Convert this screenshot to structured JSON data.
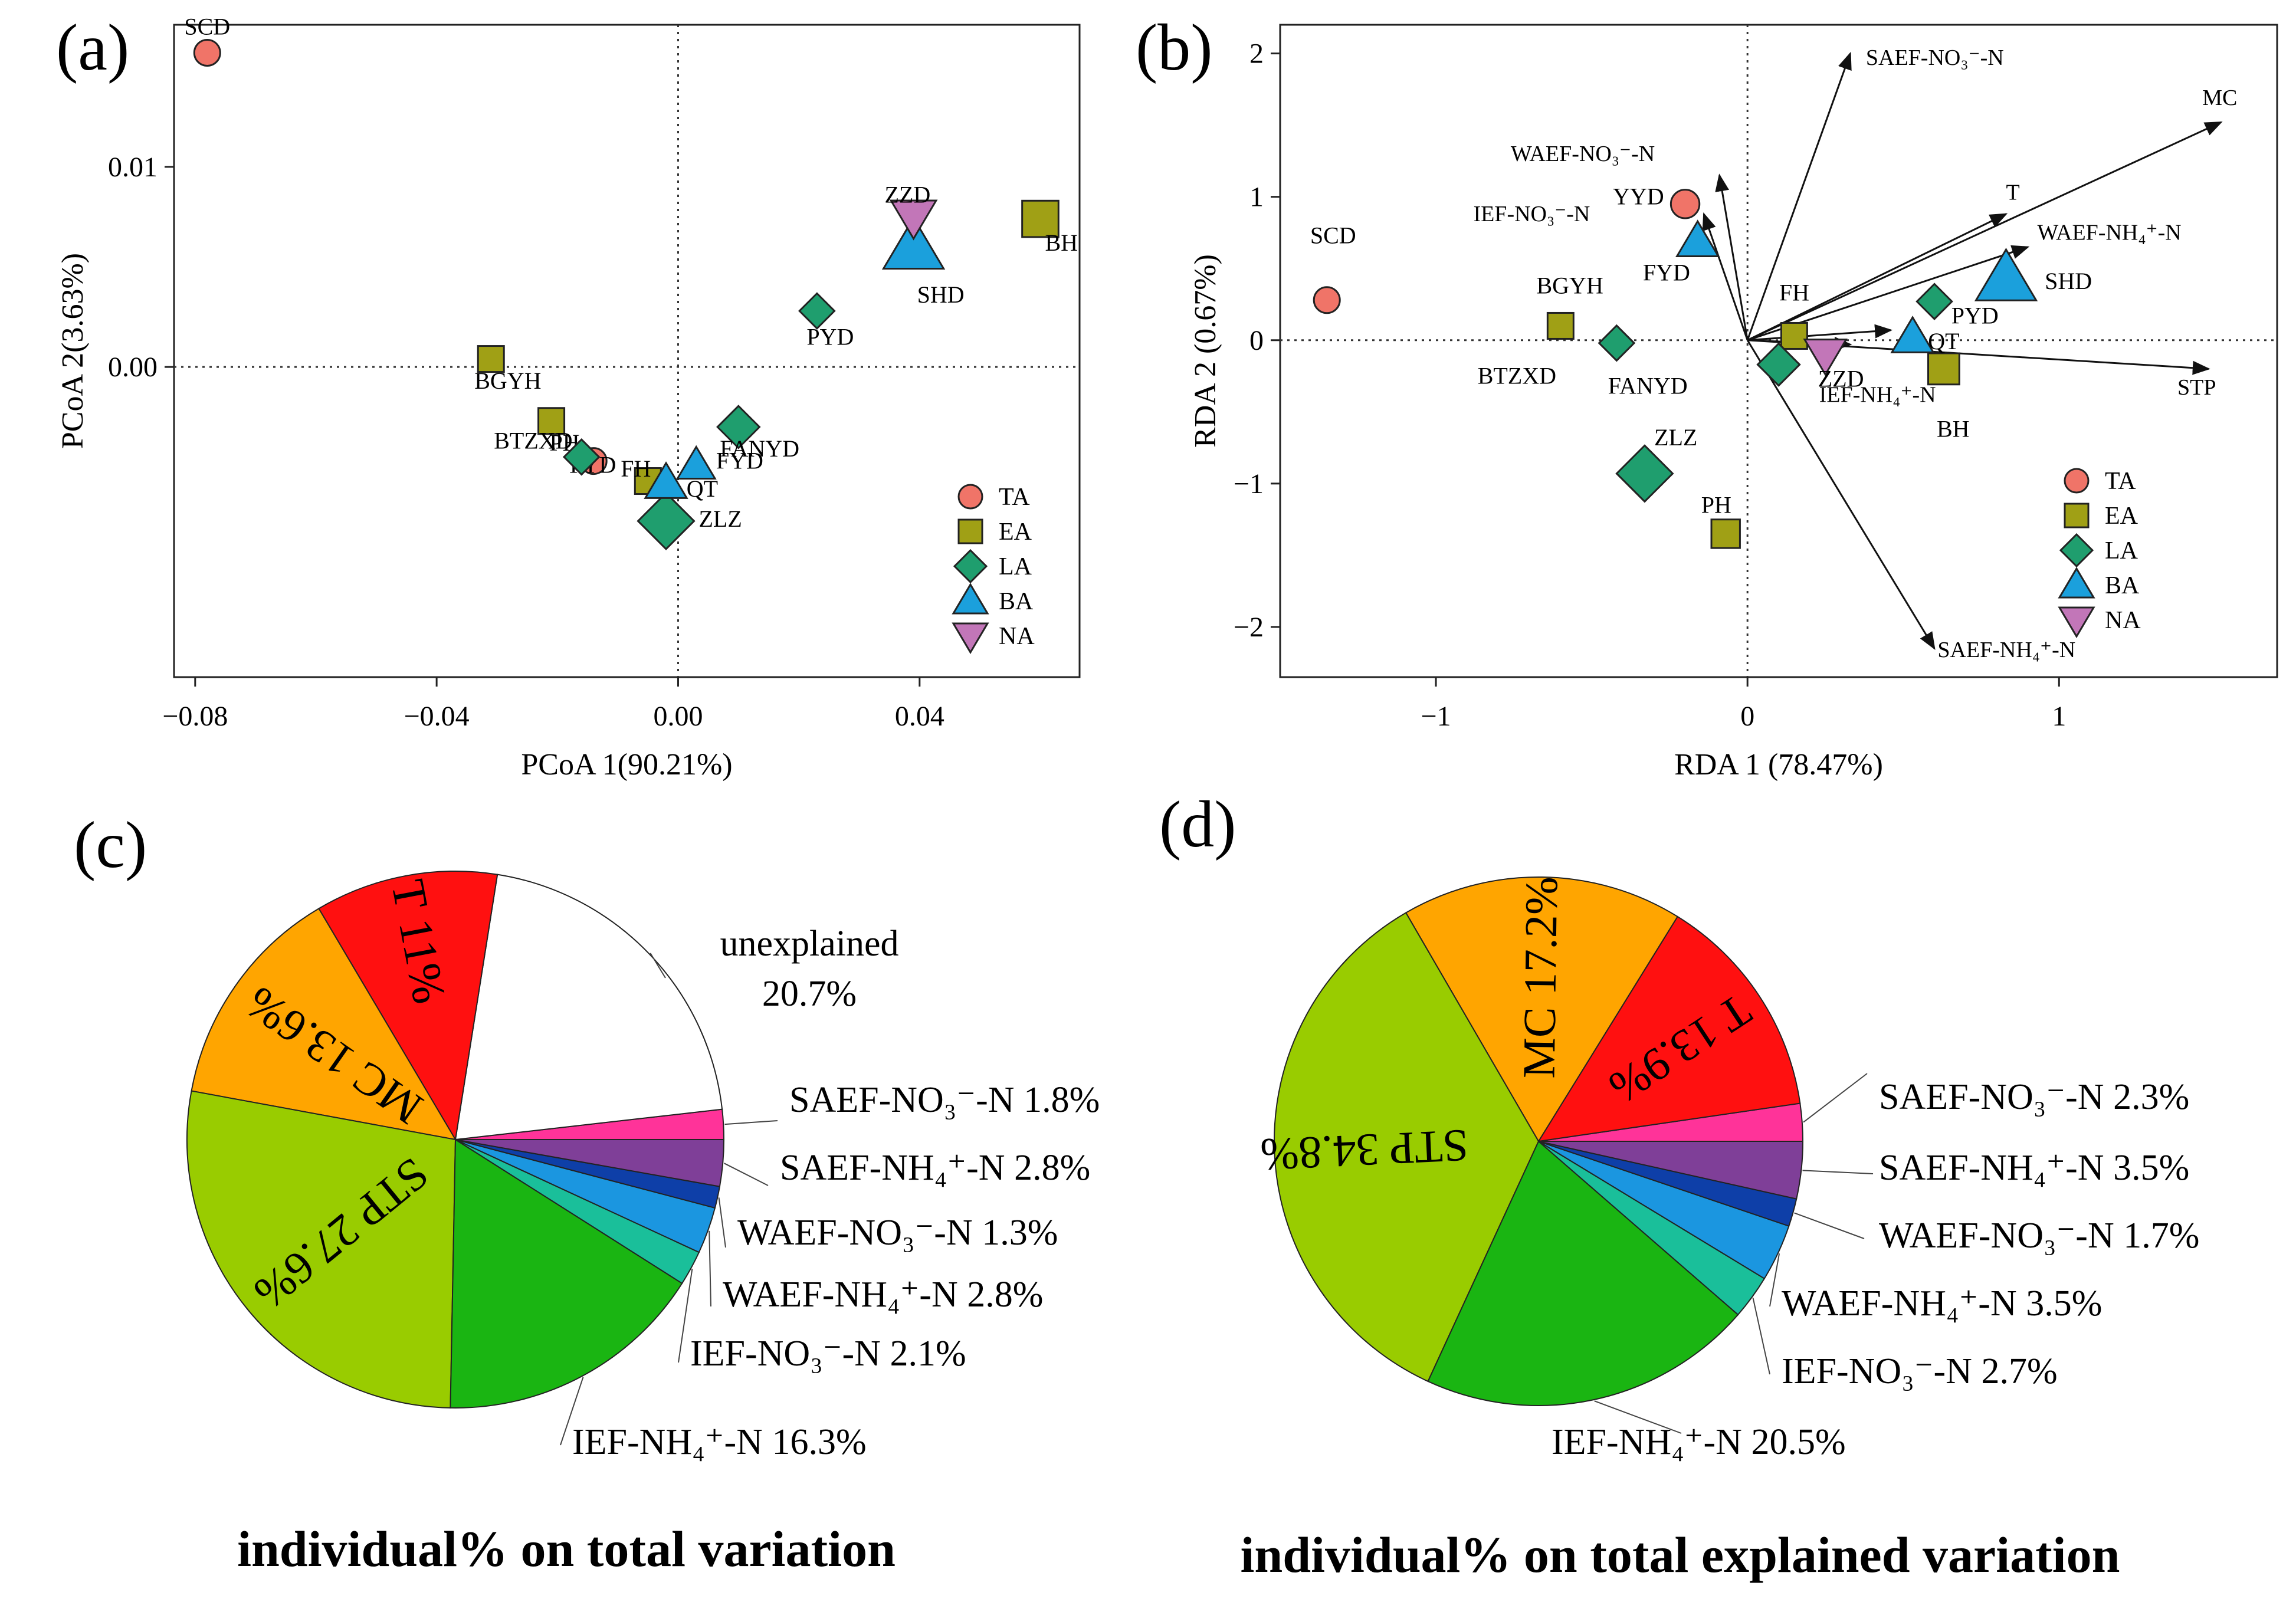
{
  "colors": {
    "TA": "#f07468",
    "EA": "#a0a015",
    "LA": "#1f9e6e",
    "BA": "#1ba0dc",
    "NA": "#c276b8",
    "pie": {
      "T": "#ff1010",
      "MC": "#ffa500",
      "STP": "#99cc00",
      "IEF-NH4": "#1ab512",
      "IEF-NO3": "#1abf9a",
      "WAEF-NH4": "#1b96e0",
      "WAEF-NO3": "#0e3fa8",
      "SAEF-NH4": "#7f3f98",
      "SAEF-NO3": "#ff3399",
      "unexplained": "#ffffff"
    }
  },
  "chart_data": [
    {
      "panel": "(a)",
      "type": "scatter",
      "xlabel": "PCoA 1(90.21%)",
      "ylabel": "PCoA 2(3.63%)",
      "xlim": [
        -0.0835,
        0.0665
      ],
      "ylim": [
        -0.0155,
        0.0171
      ],
      "xticks": [
        {
          "v": -0.08,
          "label": "−0.08"
        },
        {
          "v": -0.04,
          "label": "−0.04"
        },
        {
          "v": 0,
          "label": "0.00"
        },
        {
          "v": 0.04,
          "label": "0.04"
        }
      ],
      "yticks": [
        {
          "v": 0,
          "label": "0.00"
        },
        {
          "v": 0.01,
          "label": "0.01"
        }
      ],
      "points": [
        {
          "label": "SCD",
          "group": "TA",
          "x": -0.078,
          "y": 0.0157,
          "size": 1,
          "lx": 0,
          "ly": 0.0013
        },
        {
          "label": "YYD",
          "group": "TA",
          "x": -0.014,
          "y": -0.0047,
          "size": 1,
          "lx": -0.0005,
          "ly": -0.0002
        },
        {
          "label": "BGYH",
          "group": "EA",
          "x": -0.031,
          "y": 0.0004,
          "size": 1,
          "lx": 0.0028,
          "ly": -0.0011
        },
        {
          "label": "PH",
          "group": "EA",
          "x": -0.021,
          "y": -0.0027,
          "size": 1,
          "lx": 0.0022,
          "ly": -0.0011
        },
        {
          "label": "FH",
          "group": "EA",
          "x": -0.005,
          "y": -0.0057,
          "size": 1,
          "lx": -0.002,
          "ly": 0.0006
        },
        {
          "label": "BH",
          "group": "EA",
          "x": 0.06,
          "y": 0.0074,
          "size": 1.4,
          "lx": 0.0035,
          "ly": -0.0012
        },
        {
          "label": "BTZXD",
          "group": "LA",
          "x": -0.016,
          "y": -0.0045,
          "size": 1,
          "lx": -0.008,
          "ly": 0.0008
        },
        {
          "label": "PYD",
          "group": "LA",
          "x": 0.023,
          "y": 0.0028,
          "size": 1,
          "lx": 0.0022,
          "ly": -0.0013
        },
        {
          "label": "FANYD",
          "group": "LA",
          "x": 0.01,
          "y": -0.003,
          "size": 1.2,
          "lx": 0.0035,
          "ly": -0.0011
        },
        {
          "label": "ZLZ",
          "group": "LA",
          "x": -0.002,
          "y": -0.0077,
          "size": 1.6,
          "lx": 0.009,
          "ly": 0.0001
        },
        {
          "label": "FYD",
          "group": "BA",
          "x": 0.003,
          "y": -0.0049,
          "size": 1,
          "lx": 0.0072,
          "ly": 0.0002
        },
        {
          "label": "QT",
          "group": "BA",
          "x": -0.002,
          "y": -0.0058,
          "size": 1.1,
          "lx": 0.006,
          "ly": -0.0003
        },
        {
          "label": "SHD",
          "group": "BA",
          "x": 0.039,
          "y": 0.006,
          "size": 1.6,
          "lx": 0.0045,
          "ly": -0.0024
        },
        {
          "label": "ZZD",
          "group": "NA",
          "x": 0.039,
          "y": 0.0075,
          "size": 1.2,
          "lx": -0.001,
          "ly": 0.0011
        }
      ],
      "legend": [
        "TA",
        "EA",
        "LA",
        "BA",
        "NA"
      ]
    },
    {
      "panel": "(b)",
      "type": "scatter",
      "xlabel": "RDA 1 (78.47%)",
      "ylabel": "RDA 2 (0.67%)",
      "xlim": [
        -1.5,
        1.7
      ],
      "ylim": [
        -2.35,
        2.2
      ],
      "xticks": [
        {
          "v": -1,
          "label": "−1"
        },
        {
          "v": 0,
          "label": "0"
        },
        {
          "v": 1,
          "label": "1"
        }
      ],
      "yticks": [
        {
          "v": -2,
          "label": "−2"
        },
        {
          "v": -1,
          "label": "−1"
        },
        {
          "v": 0,
          "label": "0"
        },
        {
          "v": 1,
          "label": "1"
        },
        {
          "v": 2,
          "label": "2"
        }
      ],
      "points": [
        {
          "label": "SCD",
          "group": "TA",
          "x": -1.35,
          "y": 0.28,
          "size": 1,
          "lx": 0.02,
          "ly": 0.45
        },
        {
          "label": "YYD",
          "group": "TA",
          "x": -0.2,
          "y": 0.95,
          "size": 1.1,
          "lx": -0.15,
          "ly": 0.05
        },
        {
          "label": "BGYH",
          "group": "EA",
          "x": -0.6,
          "y": 0.1,
          "size": 1,
          "lx": 0.03,
          "ly": 0.28
        },
        {
          "label": "FH",
          "group": "EA",
          "x": 0.15,
          "y": 0.03,
          "size": 1,
          "lx": 0,
          "ly": 0.3
        },
        {
          "label": "BH",
          "group": "EA",
          "x": 0.63,
          "y": -0.2,
          "size": 1.2,
          "lx": 0.03,
          "ly": -0.42
        },
        {
          "label": "PH",
          "group": "EA",
          "x": -0.07,
          "y": -1.35,
          "size": 1.1,
          "lx": -0.03,
          "ly": 0.2
        },
        {
          "label": "BTZXD",
          "group": "LA",
          "x": -0.42,
          "y": -0.02,
          "size": 1,
          "lx": -0.32,
          "ly": -0.23
        },
        {
          "label": "PYD",
          "group": "LA",
          "x": 0.6,
          "y": 0.27,
          "size": 1,
          "lx": 0.13,
          "ly": -0.1
        },
        {
          "label": "ZLZ",
          "group": "LA",
          "x": -0.33,
          "y": -0.93,
          "size": 1.6,
          "lx": 0.1,
          "ly": 0.25
        },
        {
          "label": "FANYD",
          "group": "LA",
          "x": 0.1,
          "y": -0.17,
          "size": 1.2,
          "lx": -0.42,
          "ly": -0.15
        },
        {
          "label": "FYD",
          "group": "BA",
          "x": -0.16,
          "y": 0.69,
          "size": 1.1,
          "lx": -0.1,
          "ly": -0.22
        },
        {
          "label": "SHD",
          "group": "BA",
          "x": 0.83,
          "y": 0.43,
          "size": 1.6,
          "lx": 0.2,
          "ly": -0.02
        },
        {
          "label": "QT",
          "group": "BA",
          "x": 0.53,
          "y": 0.02,
          "size": 1.1,
          "lx": 0.1,
          "ly": -0.03
        },
        {
          "label": "ZZD",
          "group": "NA",
          "x": 0.25,
          "y": -0.1,
          "size": 1.1,
          "lx": 0.05,
          "ly": -0.17
        }
      ],
      "vectors": [
        {
          "name": "SAEF-NO3-N",
          "label": "SAEF-NO₃⁻-N",
          "x": 0.33,
          "y": 2.0,
          "lx": 0.05,
          "ly": -0.08
        },
        {
          "name": "MC",
          "label": "MC",
          "x": 1.52,
          "y": 1.52,
          "lx": -0.06,
          "ly": 0.12
        },
        {
          "name": "T",
          "label": "T",
          "x": 0.83,
          "y": 0.88,
          "lx": 0,
          "ly": 0.1
        },
        {
          "name": "WAEF-NH4-N",
          "label": "WAEF-NH₄⁺-N",
          "x": 0.9,
          "y": 0.65,
          "lx": 0.03,
          "ly": 0.05
        },
        {
          "name": "STP",
          "label": "STP",
          "x": 1.48,
          "y": -0.2,
          "lx": -0.1,
          "ly": -0.18
        },
        {
          "name": "SAEF-NH4-N",
          "label": "SAEF-NH₄⁺-N",
          "x": 0.6,
          "y": -2.15,
          "lx": 0.01,
          "ly": -0.06
        },
        {
          "name": "WAEF-NO3-N",
          "label": "WAEF-NO₃⁻-N",
          "x": -0.09,
          "y": 1.15,
          "lx": -0.67,
          "ly": 0.1
        },
        {
          "name": "IEF-NO3-N",
          "label": "IEF-NO₃⁻-N",
          "x": -0.14,
          "y": 0.88,
          "lx": -0.74,
          "ly": -0.05
        },
        {
          "name": "QT-dir",
          "label": "",
          "x": 0.46,
          "y": 0.07,
          "lx": 0,
          "ly": 0
        },
        {
          "name": "IEF-NH4-N",
          "label": "IEF-NH₄⁺-N",
          "x": 0.33,
          "y": -0.03,
          "lx": -0.1,
          "ly": -0.4
        }
      ],
      "legend": [
        "TA",
        "EA",
        "LA",
        "BA",
        "NA"
      ]
    },
    {
      "panel": "(c)",
      "type": "pie",
      "title": "individual% on total variation",
      "slices": [
        {
          "key": "SAEF-NO3",
          "value": 1.8,
          "label": "SAEF-NO₃⁻-N 1.8%"
        },
        {
          "key": "unexplained",
          "value": 20.7,
          "label": "unexplained 20.7%"
        },
        {
          "key": "T",
          "value": 11.0,
          "label": "T 11%"
        },
        {
          "key": "MC",
          "value": 13.6,
          "label": "MC 13.6%"
        },
        {
          "key": "STP",
          "value": 27.6,
          "label": "STP 27.6%"
        },
        {
          "key": "IEF-NH4",
          "value": 16.3,
          "label": "IEF-NH₄⁺-N 16.3%"
        },
        {
          "key": "IEF-NO3",
          "value": 2.1,
          "label": "IEF-NO₃⁻-N 2.1%"
        },
        {
          "key": "WAEF-NH4",
          "value": 2.8,
          "label": "WAEF-NH₄⁺-N 2.8%"
        },
        {
          "key": "WAEF-NO3",
          "value": 1.3,
          "label": "WAEF-NO₃⁻-N 1.3%"
        },
        {
          "key": "SAEF-NH4",
          "value": 2.8,
          "label": "SAEF-NH₄⁺-N 2.8%"
        }
      ]
    },
    {
      "panel": "(d)",
      "type": "pie",
      "title": "individual% on total explained variation",
      "slices": [
        {
          "key": "SAEF-NO3",
          "value": 2.3,
          "label": "SAEF-NO₃⁻-N 2.3%"
        },
        {
          "key": "T",
          "value": 13.9,
          "label": "T 13.9%"
        },
        {
          "key": "MC",
          "value": 17.2,
          "label": "MC 17.2%"
        },
        {
          "key": "STP",
          "value": 34.8,
          "label": "STP 34.8%"
        },
        {
          "key": "IEF-NH4",
          "value": 20.5,
          "label": "IEF-NH₄⁺-N 20.5%"
        },
        {
          "key": "IEF-NO3",
          "value": 2.7,
          "label": "IEF-NO₃⁻-N 2.7%"
        },
        {
          "key": "WAEF-NH4",
          "value": 3.5,
          "label": "WAEF-NH₄⁺-N 3.5%"
        },
        {
          "key": "WAEF-NO3",
          "value": 1.7,
          "label": "WAEF-NO₃⁻-N 1.7%"
        },
        {
          "key": "SAEF-NH4",
          "value": 3.5,
          "label": "SAEF-NH₄⁺-N 3.5%"
        }
      ]
    }
  ]
}
